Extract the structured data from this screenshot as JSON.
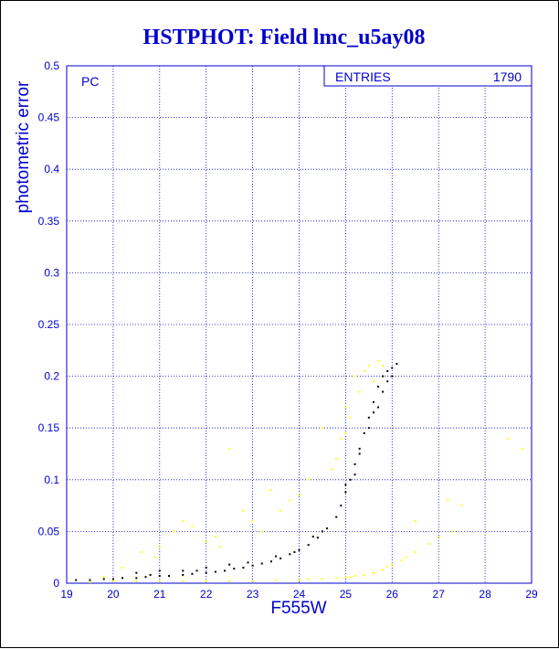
{
  "chart_data": {
    "type": "scatter",
    "title": "HSTPHOT: Field lmc_u5ay08",
    "xlabel": "F555W",
    "ylabel": "photometric error",
    "xlim": [
      19,
      29
    ],
    "ylim": [
      0,
      0.5
    ],
    "x_ticks": [
      "19",
      "20",
      "21",
      "22",
      "23",
      "24",
      "25",
      "26",
      "27",
      "28",
      "29"
    ],
    "y_ticks": [
      "0",
      "0.05",
      "0.1",
      "0.15",
      "0.2",
      "0.25",
      "0.3",
      "0.35",
      "0.4",
      "0.45",
      "0.5"
    ],
    "grid": true,
    "panel_label": "PC",
    "stats_box": {
      "label": "ENTRIES",
      "value": "1790",
      "placement": "top-right"
    },
    "series": [
      {
        "color": "#000000",
        "points": [
          [
            19.2,
            0.003
          ],
          [
            19.5,
            0.003
          ],
          [
            19.8,
            0.004
          ],
          [
            20.0,
            0.004
          ],
          [
            20.2,
            0.005
          ],
          [
            20.5,
            0.005
          ],
          [
            20.7,
            0.006
          ],
          [
            21.0,
            0.007
          ],
          [
            21.2,
            0.007
          ],
          [
            21.5,
            0.008
          ],
          [
            21.7,
            0.009
          ],
          [
            22.0,
            0.01
          ],
          [
            22.2,
            0.011
          ],
          [
            22.4,
            0.012
          ],
          [
            22.6,
            0.014
          ],
          [
            22.8,
            0.015
          ],
          [
            23.0,
            0.017
          ],
          [
            23.2,
            0.019
          ],
          [
            23.4,
            0.021
          ],
          [
            23.6,
            0.024
          ],
          [
            23.8,
            0.028
          ],
          [
            24.0,
            0.032
          ],
          [
            24.2,
            0.037
          ],
          [
            24.4,
            0.044
          ],
          [
            24.6,
            0.053
          ],
          [
            24.8,
            0.064
          ],
          [
            24.9,
            0.075
          ],
          [
            25.0,
            0.088
          ],
          [
            25.1,
            0.1
          ],
          [
            25.2,
            0.115
          ],
          [
            25.3,
            0.13
          ],
          [
            25.4,
            0.145
          ],
          [
            25.5,
            0.16
          ],
          [
            25.6,
            0.175
          ],
          [
            25.7,
            0.19
          ],
          [
            25.8,
            0.2
          ],
          [
            25.9,
            0.205
          ],
          [
            26.0,
            0.208
          ],
          [
            26.1,
            0.212
          ],
          [
            25.0,
            0.095
          ],
          [
            25.3,
            0.125
          ],
          [
            25.6,
            0.165
          ],
          [
            24.5,
            0.05
          ],
          [
            23.9,
            0.03
          ],
          [
            22.9,
            0.02
          ],
          [
            21.8,
            0.012
          ],
          [
            20.8,
            0.008
          ],
          [
            25.8,
            0.185
          ],
          [
            25.9,
            0.195
          ],
          [
            25.5,
            0.15
          ],
          [
            24.3,
            0.045
          ],
          [
            23.5,
            0.026
          ],
          [
            22.5,
            0.018
          ],
          [
            21.5,
            0.012
          ],
          [
            20.5,
            0.01
          ],
          [
            22.0,
            0.015
          ],
          [
            21.0,
            0.012
          ],
          [
            26.0,
            0.2
          ],
          [
            25.7,
            0.17
          ],
          [
            25.2,
            0.105
          ]
        ]
      },
      {
        "color": "#ffff00",
        "points": [
          [
            19.5,
            0.001
          ],
          [
            20.0,
            0.002
          ],
          [
            20.5,
            0.002
          ],
          [
            21.0,
            0.002
          ],
          [
            21.5,
            0.002
          ],
          [
            22.0,
            0.002
          ],
          [
            22.5,
            0.002
          ],
          [
            23.0,
            0.002
          ],
          [
            23.5,
            0.003
          ],
          [
            24.0,
            0.003
          ],
          [
            24.5,
            0.004
          ],
          [
            24.8,
            0.005
          ],
          [
            25.0,
            0.006
          ],
          [
            25.2,
            0.007
          ],
          [
            25.4,
            0.008
          ],
          [
            25.6,
            0.01
          ],
          [
            25.8,
            0.013
          ],
          [
            26.0,
            0.018
          ],
          [
            26.2,
            0.022
          ],
          [
            26.5,
            0.03
          ],
          [
            26.8,
            0.038
          ],
          [
            27.0,
            0.045
          ],
          [
            27.3,
            0.05
          ],
          [
            20.2,
            0.015
          ],
          [
            20.6,
            0.03
          ],
          [
            21.0,
            0.035
          ],
          [
            21.5,
            0.06
          ],
          [
            21.7,
            0.055
          ],
          [
            22.0,
            0.04
          ],
          [
            22.3,
            0.035
          ],
          [
            22.5,
            0.13
          ],
          [
            22.8,
            0.07
          ],
          [
            23.0,
            0.06
          ],
          [
            23.4,
            0.09
          ],
          [
            23.8,
            0.08
          ],
          [
            24.2,
            0.1
          ],
          [
            24.5,
            0.15
          ],
          [
            24.8,
            0.12
          ],
          [
            25.0,
            0.17
          ],
          [
            25.2,
            0.2
          ],
          [
            25.5,
            0.21
          ],
          [
            25.7,
            0.215
          ],
          [
            25.3,
            0.185
          ],
          [
            25.1,
            0.16
          ],
          [
            24.9,
            0.14
          ],
          [
            25.4,
            0.205
          ],
          [
            25.6,
            0.195
          ],
          [
            25.8,
            0.21
          ],
          [
            27.2,
            0.08
          ],
          [
            27.5,
            0.075
          ],
          [
            28.5,
            0.14
          ],
          [
            28.8,
            0.13
          ],
          [
            26.5,
            0.06
          ],
          [
            19.8,
            0.006
          ],
          [
            20.9,
            0.025
          ],
          [
            21.3,
            0.05
          ],
          [
            22.2,
            0.045
          ],
          [
            23.2,
            0.05
          ],
          [
            23.6,
            0.07
          ],
          [
            24.0,
            0.085
          ],
          [
            24.7,
            0.11
          ],
          [
            25.0,
            0.145
          ],
          [
            25.9,
            0.016
          ],
          [
            26.3,
            0.025
          ],
          [
            25.1,
            0.006
          ],
          [
            24.2,
            0.004
          ]
        ]
      }
    ]
  }
}
